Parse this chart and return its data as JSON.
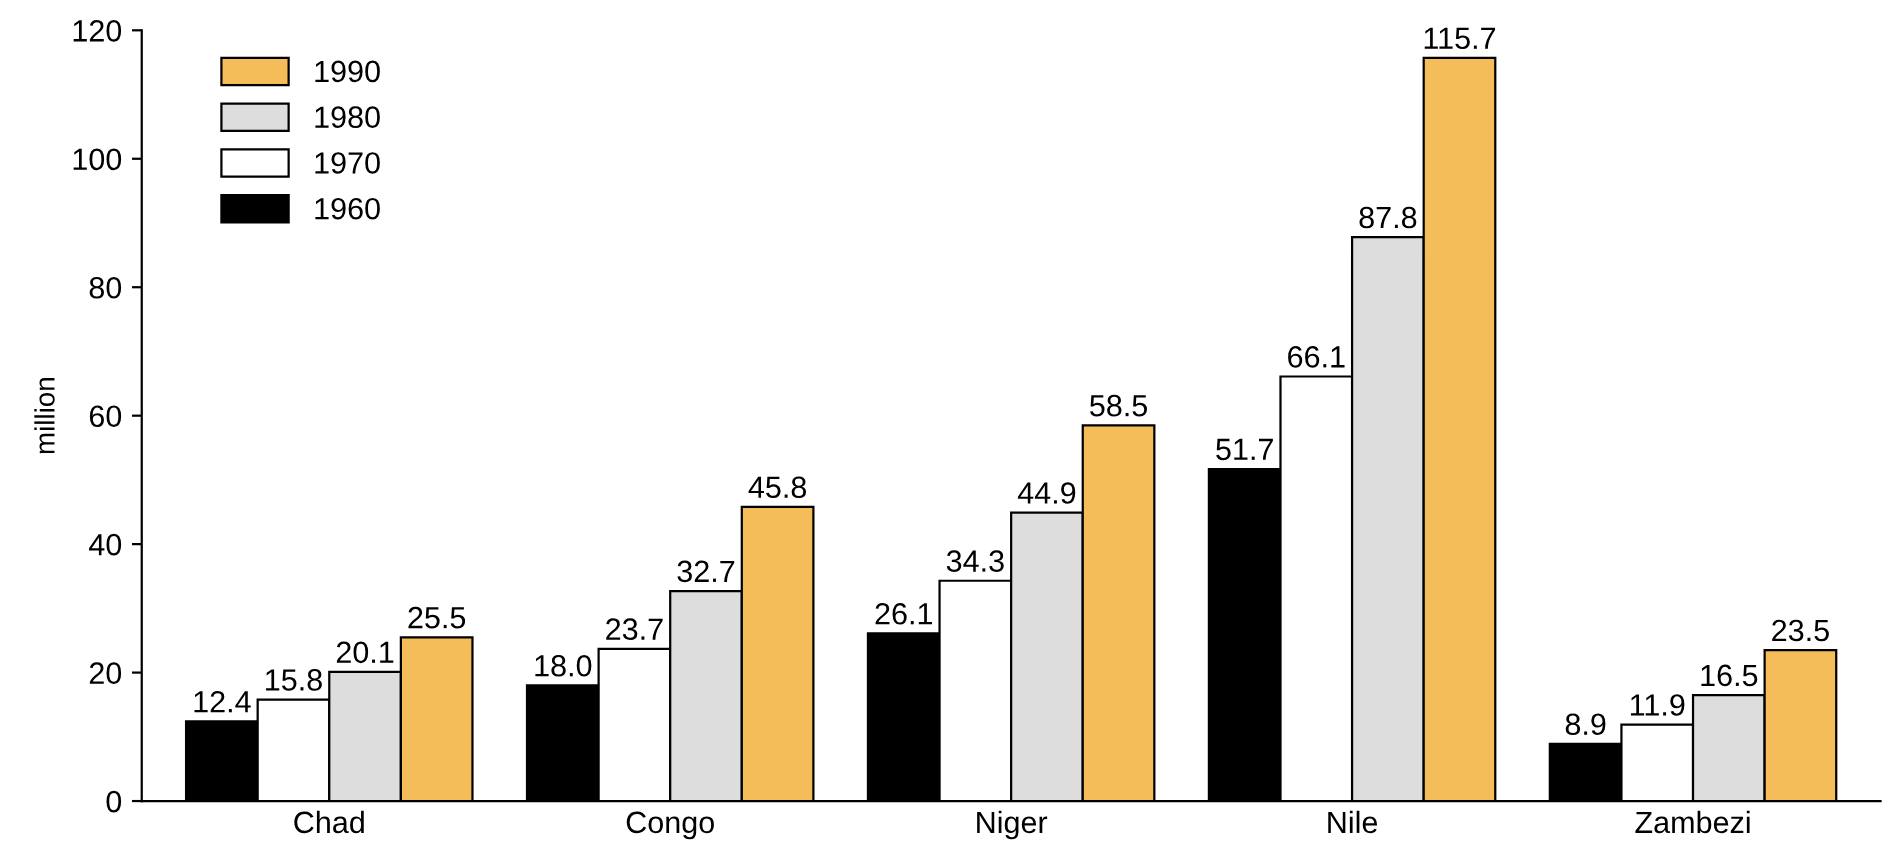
{
  "chart_data": {
    "type": "bar",
    "ylabel": "million",
    "categories": [
      "Chad",
      "Congo",
      "Niger",
      "Nile",
      "Zambezi"
    ],
    "series": [
      {
        "name": "1960",
        "color": "#000000",
        "values": [
          12.4,
          18.0,
          26.1,
          51.7,
          8.9
        ]
      },
      {
        "name": "1970",
        "color": "#ffffff",
        "values": [
          15.8,
          23.7,
          34.3,
          66.1,
          11.9
        ]
      },
      {
        "name": "1980",
        "color": "#dddddd",
        "values": [
          20.1,
          32.7,
          44.9,
          87.8,
          16.5
        ]
      },
      {
        "name": "1990",
        "color": "#f5bd5a",
        "values": [
          25.5,
          45.8,
          58.5,
          115.7,
          23.5
        ]
      }
    ],
    "value_labels": [
      [
        "12.4",
        "18.0",
        "26.1",
        "51.7",
        "8.9"
      ],
      [
        "15.8",
        "23.7",
        "34.3",
        "66.1",
        "11.9"
      ],
      [
        "20.1",
        "32.7",
        "44.9",
        "87.8",
        "16.5"
      ],
      [
        "25.5",
        "45.8",
        "58.5",
        "115.7",
        "23.5"
      ]
    ],
    "ylim": [
      0,
      120
    ],
    "yticks": [
      0,
      20,
      40,
      60,
      80,
      100,
      120
    ],
    "grid": false,
    "legend": "top left"
  }
}
